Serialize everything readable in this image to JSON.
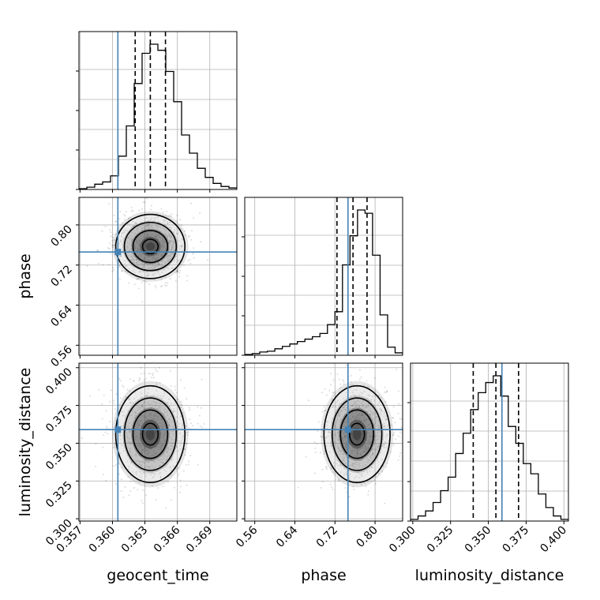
{
  "colors": {
    "truth": "#4682b4",
    "hist": "#000000",
    "quantile": "#000000",
    "grid": "#b0b0b0",
    "scatter": "#000000"
  },
  "chart_data": {
    "type": "corner",
    "parameters": [
      "geocent_time",
      "phase",
      "luminosity_distance"
    ],
    "truths": {
      "geocent_time": 0.3605,
      "phase": 0.746,
      "luminosity_distance": 0.359
    },
    "quantiles": {
      "geocent_time": [
        0.3621,
        0.3635,
        0.3649
      ],
      "phase": [
        0.724,
        0.756,
        0.784
      ],
      "luminosity_distance": [
        0.34,
        0.355,
        0.37
      ]
    },
    "axes": {
      "geocent_time": {
        "range": [
          0.3569,
          0.3715
        ],
        "ticks": [
          0.357,
          0.36,
          0.363,
          0.366,
          0.369
        ],
        "tick_labels": [
          "0.357",
          "0.360",
          "0.363",
          "0.366",
          "0.369"
        ],
        "label": "geocent_time"
      },
      "phase": {
        "range": [
          0.54,
          0.855
        ],
        "ticks": [
          0.56,
          0.64,
          0.72,
          0.8
        ],
        "tick_labels": [
          "0.56",
          "0.64",
          "0.72",
          "0.80"
        ],
        "label": "phase"
      },
      "luminosity_distance": {
        "range": [
          0.2985,
          0.403
        ],
        "ticks": [
          0.3,
          0.325,
          0.35,
          0.375,
          0.4
        ],
        "tick_labels": [
          "0.300",
          "0.325",
          "0.350",
          "0.375",
          "0.400"
        ],
        "label": "luminosity_distance"
      }
    },
    "histograms": {
      "geocent_time": {
        "counts": [
          0.5,
          1.5,
          3.5,
          5,
          9,
          22,
          42,
          70,
          90,
          96,
          92,
          78,
          58,
          36,
          24,
          14,
          8,
          4,
          2,
          1
        ]
      },
      "phase": {
        "counts": [
          0.5,
          1,
          2,
          2.5,
          4,
          5.5,
          7,
          8.5,
          10,
          11.5,
          13.5,
          19,
          27,
          56,
          74,
          90,
          88,
          62,
          25,
          5,
          1.5
        ]
      },
      "luminosity_distance": {
        "counts": [
          1,
          3,
          6,
          11,
          18,
          26,
          40,
          52,
          66,
          76,
          82,
          86,
          74,
          56,
          46,
          34,
          28,
          16,
          8,
          3,
          1
        ]
      }
    },
    "joint": [
      {
        "x": "geocent_time",
        "y": "phase",
        "center": [
          0.3635,
          0.757
        ],
        "sd": [
          0.0016,
          0.032
        ]
      },
      {
        "x": "geocent_time",
        "y": "luminosity_distance",
        "center": [
          0.3635,
          0.356
        ],
        "sd": [
          0.0016,
          0.016
        ]
      },
      {
        "x": "phase",
        "y": "luminosity_distance",
        "center": [
          0.764,
          0.356
        ],
        "sd": [
          0.033,
          0.016
        ]
      }
    ],
    "grid": true,
    "title": ""
  }
}
